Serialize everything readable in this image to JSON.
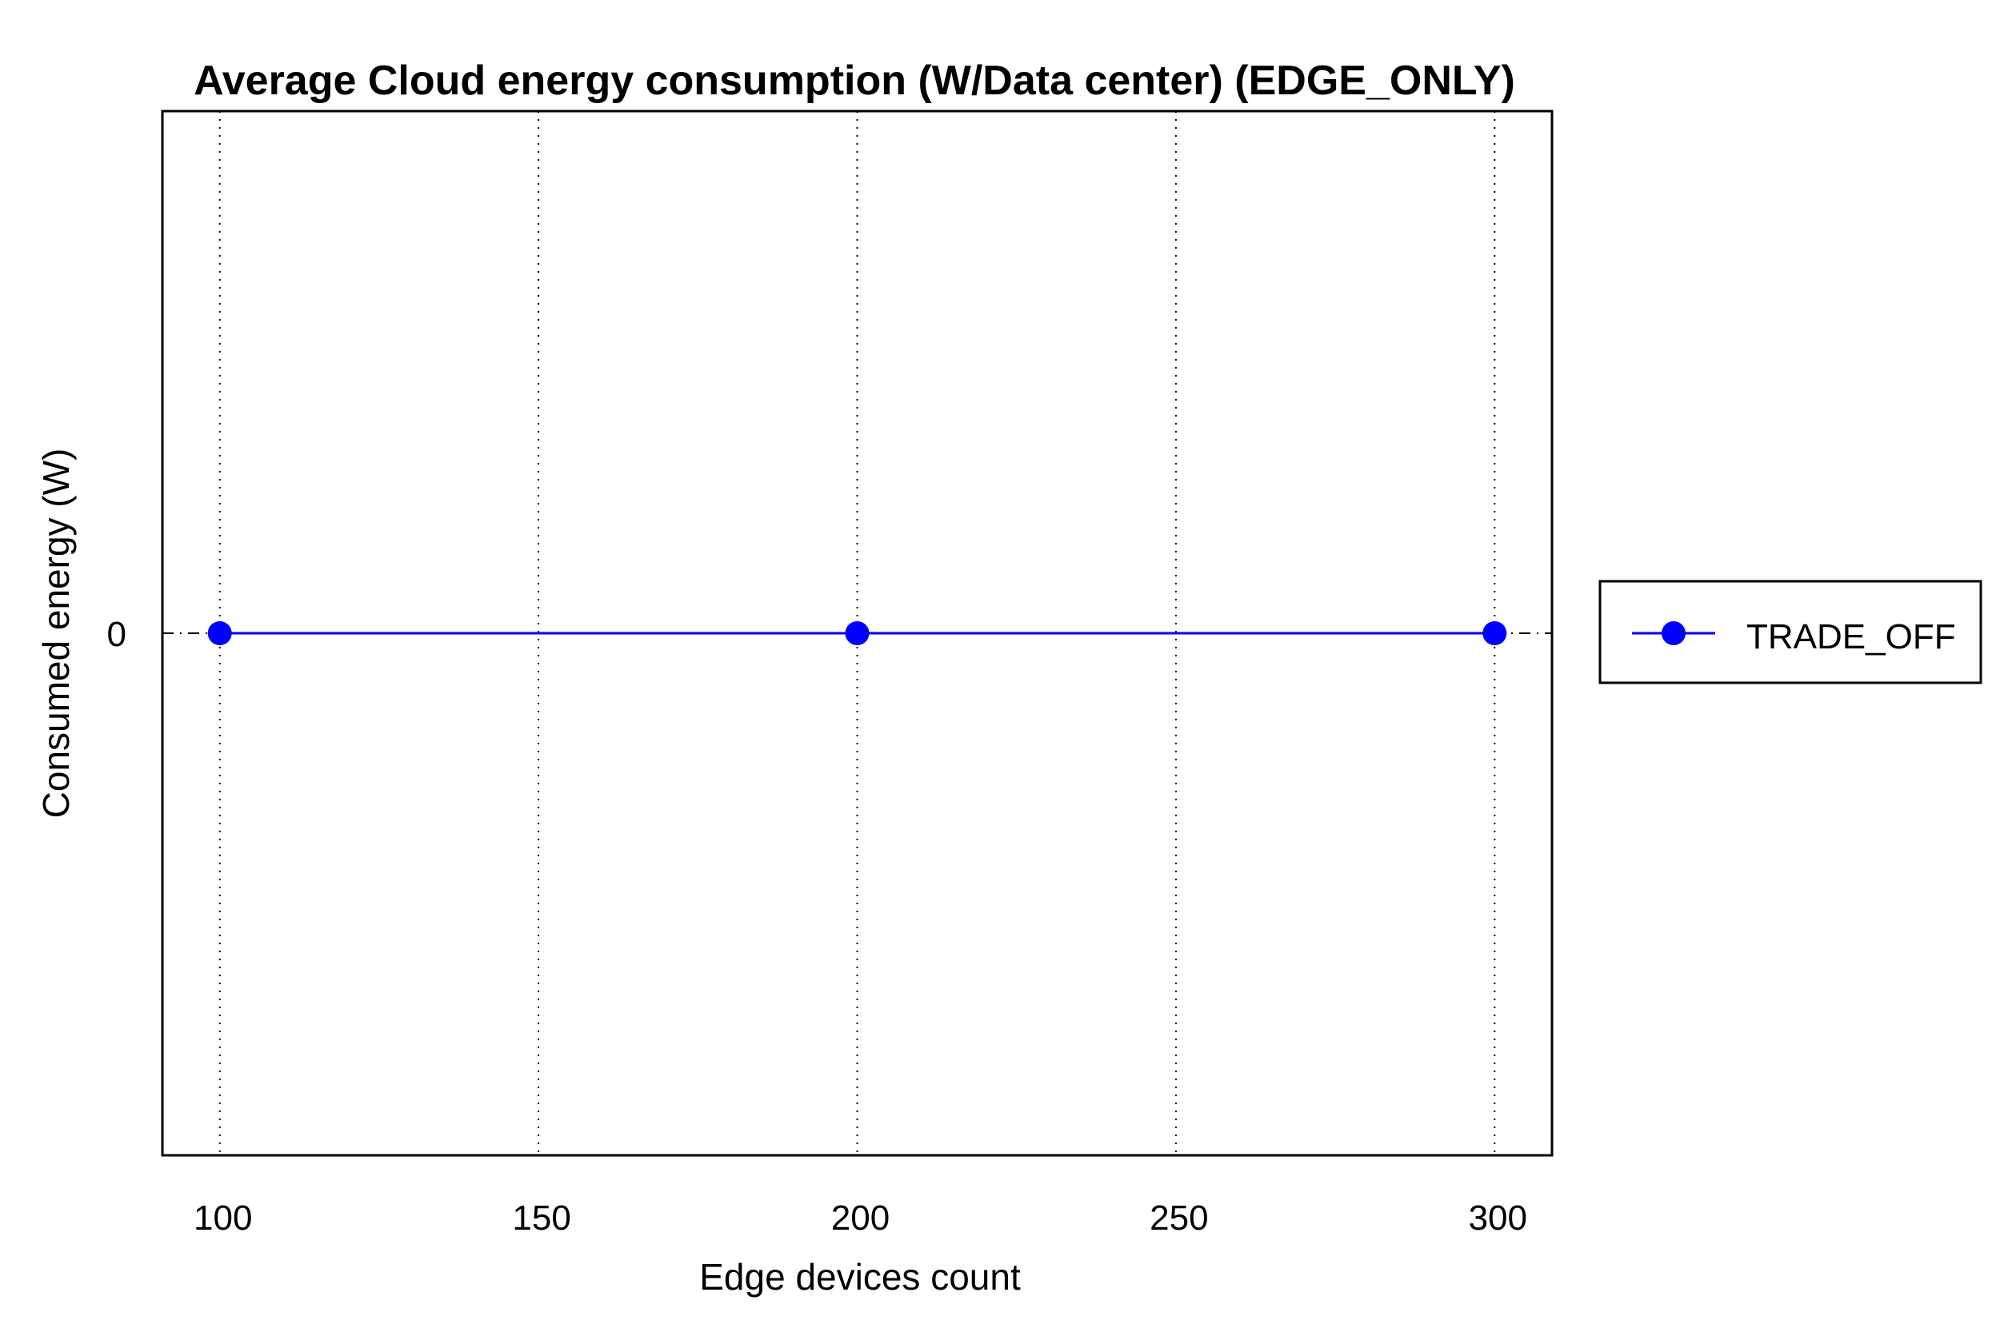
{
  "chart_data": {
    "type": "line",
    "title": "Average Cloud energy consumption (W/Data center) (EDGE_ONLY)",
    "xlabel": "Edge devices count",
    "ylabel": "Consumed energy (W)",
    "x": [
      100,
      200,
      300
    ],
    "xlim": [
      91,
      309
    ],
    "ylim": [
      -1,
      1
    ],
    "xticks": [
      100,
      150,
      200,
      250,
      300
    ],
    "xtick_labels": [
      "100",
      "150",
      "200",
      "250",
      "300"
    ],
    "yticks": [
      0
    ],
    "ytick_labels": [
      "0"
    ],
    "grid": "x-major dotted",
    "legend_position": "outside right",
    "series": [
      {
        "name": "TRADE_OFF",
        "color": "#0000ff",
        "marker": "circle",
        "values": [
          0,
          0,
          0
        ]
      }
    ]
  }
}
